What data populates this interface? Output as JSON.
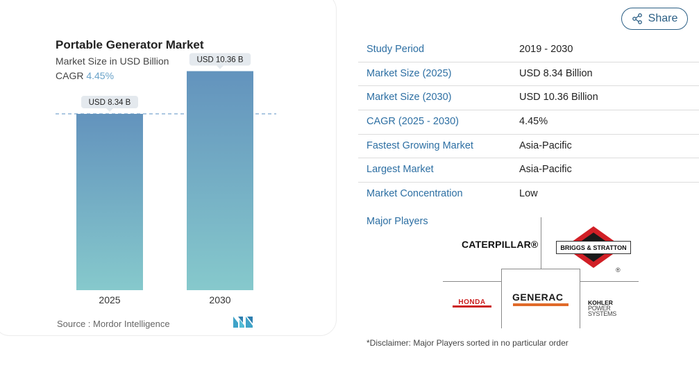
{
  "header": {
    "title": "Portable Generator Market",
    "subtitle": "Market Size in USD Billion",
    "cagr_label": "CAGR",
    "cagr_value": "4.45%"
  },
  "chart_data": {
    "type": "bar",
    "categories": [
      "2025",
      "2030"
    ],
    "values": [
      8.34,
      10.36
    ],
    "data_labels": [
      "USD 8.34 B",
      "USD 10.36 B"
    ],
    "title": "Portable Generator Market",
    "subtitle": "Market Size in USD Billion",
    "ylim": [
      0,
      11
    ],
    "grid": false,
    "reference_line_at": 8.34,
    "colors": {
      "bar_top": "#6393bd",
      "bar_bottom": "#86c9cc",
      "reference_line": "#7ba6cf"
    }
  },
  "source": {
    "label": "Source :",
    "value": "Mordor Intelligence"
  },
  "logo": {
    "icon": "mordor-intelligence-logo-icon",
    "color": "#3fa3c8"
  },
  "share": {
    "label": "Share",
    "icon": "share-icon",
    "color": "#2b5f85"
  },
  "info_table": [
    {
      "label": "Study Period",
      "value": "2019 - 2030"
    },
    {
      "label": "Market Size (2025)",
      "value": "USD 8.34 Billion"
    },
    {
      "label": "Market Size (2030)",
      "value": "USD 10.36 Billion"
    },
    {
      "label": "CAGR (2025 - 2030)",
      "value": "4.45%"
    },
    {
      "label": "Fastest Growing Market",
      "value": "Asia-Pacific"
    },
    {
      "label": "Largest Market",
      "value": "Asia-Pacific"
    },
    {
      "label": "Market Concentration",
      "value": "Low"
    }
  ],
  "major_players": {
    "label": "Major Players",
    "logos": {
      "caterpillar": "CATERPILLAR®",
      "briggs": "BRIGGS & STRATTON",
      "briggs_reg": "®",
      "generac": "GENERAC",
      "honda": "HONDA",
      "kohler_line1": "KOHLER",
      "kohler_line2": "POWER SYSTEMS"
    }
  },
  "disclaimer": "*Disclaimer: Major Players sorted in no particular order"
}
